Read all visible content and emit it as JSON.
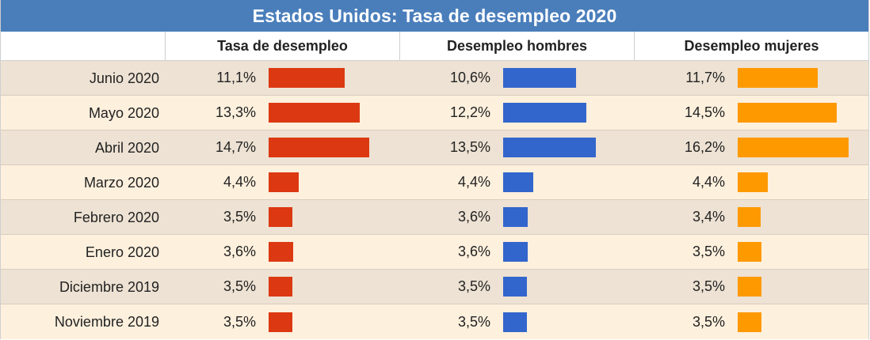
{
  "chart_data": {
    "type": "table",
    "title": "Estados Unidos: Tasa de desempleo 2020",
    "columns": [
      "Tasa de desempleo",
      "Desempleo hombres",
      "Desempleo mujeres"
    ],
    "colors": [
      "#dc3912",
      "#3366cc",
      "#ff9900"
    ],
    "rows": [
      {
        "label": "Junio 2020",
        "values": [
          "11,1%",
          "10,6%",
          "11,7%"
        ],
        "nums": [
          11.1,
          10.6,
          11.7
        ]
      },
      {
        "label": "Mayo 2020",
        "values": [
          "13,3%",
          "12,2%",
          "14,5%"
        ],
        "nums": [
          13.3,
          12.2,
          14.5
        ]
      },
      {
        "label": "Abril 2020",
        "values": [
          "14,7%",
          "13,5%",
          "16,2%"
        ],
        "nums": [
          14.7,
          13.5,
          16.2
        ]
      },
      {
        "label": "Marzo 2020",
        "values": [
          "4,4%",
          "4,4%",
          "4,4%"
        ],
        "nums": [
          4.4,
          4.4,
          4.4
        ]
      },
      {
        "label": "Febrero 2020",
        "values": [
          "3,5%",
          "3,6%",
          "3,4%"
        ],
        "nums": [
          3.5,
          3.6,
          3.4
        ]
      },
      {
        "label": "Enero 2020",
        "values": [
          "3,6%",
          "3,6%",
          "3,5%"
        ],
        "nums": [
          3.6,
          3.6,
          3.5
        ]
      },
      {
        "label": "Diciembre 2019",
        "values": [
          "3,5%",
          "3,5%",
          "3,5%"
        ],
        "nums": [
          3.5,
          3.5,
          3.5
        ]
      },
      {
        "label": "Noviembre 2019",
        "values": [
          "3,5%",
          "3,5%",
          "3,5%"
        ],
        "nums": [
          3.5,
          3.5,
          3.5
        ]
      }
    ]
  }
}
